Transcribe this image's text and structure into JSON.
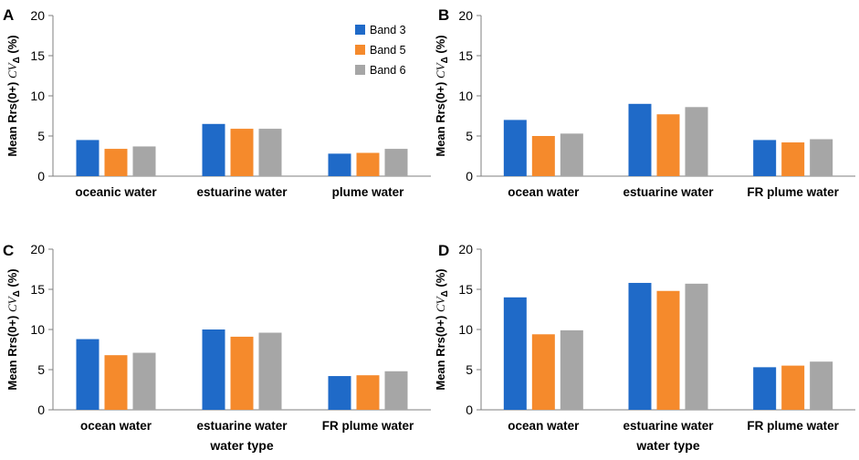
{
  "figure": {
    "x_axis_title": "water type"
  },
  "legend": {
    "show_in_panel": "A",
    "placement": "top-right"
  },
  "chart_data": [
    {
      "panel": "A",
      "type": "bar",
      "ylabel_main": "Mean Rrs(0+) ",
      "ylabel_cv": "CV",
      "ylabel_sub": "Δ",
      "ylabel_unit": " (%)",
      "xlabel": "",
      "ylim": [
        0,
        20
      ],
      "yticks": [
        0,
        5,
        10,
        15,
        20
      ],
      "categories": [
        "oceanic water",
        "estuarine water",
        "plume water"
      ],
      "series": [
        {
          "name": "Band 3",
          "color": "#1f6ac8",
          "values": [
            4.5,
            6.5,
            2.8
          ]
        },
        {
          "name": "Band 5",
          "color": "#f58a2c",
          "values": [
            3.4,
            5.9,
            2.9
          ]
        },
        {
          "name": "Band 6",
          "color": "#a6a6a6",
          "values": [
            3.7,
            5.9,
            3.4
          ]
        }
      ]
    },
    {
      "panel": "B",
      "type": "bar",
      "ylabel_main": "Mean Rrs(0+) ",
      "ylabel_cv": "CV",
      "ylabel_sub": "Δ",
      "ylabel_unit": " (%)",
      "xlabel": "",
      "ylim": [
        0,
        20
      ],
      "yticks": [
        0,
        5,
        10,
        15,
        20
      ],
      "categories": [
        "ocean water",
        "estuarine water",
        "FR plume water"
      ],
      "series": [
        {
          "name": "Band 3",
          "color": "#1f6ac8",
          "values": [
            7.0,
            9.0,
            4.5
          ]
        },
        {
          "name": "Band 5",
          "color": "#f58a2c",
          "values": [
            5.0,
            7.7,
            4.2
          ]
        },
        {
          "name": "Band 6",
          "color": "#a6a6a6",
          "values": [
            5.3,
            8.6,
            4.6
          ]
        }
      ]
    },
    {
      "panel": "C",
      "type": "bar",
      "ylabel_main": "Mean Rrs(0+) ",
      "ylabel_cv": "CV",
      "ylabel_sub": "Δ",
      "ylabel_unit": " (%)",
      "xlabel": "water type",
      "ylim": [
        0,
        20
      ],
      "yticks": [
        0,
        5,
        10,
        15,
        20
      ],
      "categories": [
        "ocean water",
        "estuarine water",
        "FR plume water"
      ],
      "series": [
        {
          "name": "Band 3",
          "color": "#1f6ac8",
          "values": [
            8.8,
            10.0,
            4.2
          ]
        },
        {
          "name": "Band 5",
          "color": "#f58a2c",
          "values": [
            6.8,
            9.1,
            4.3
          ]
        },
        {
          "name": "Band 6",
          "color": "#a6a6a6",
          "values": [
            7.1,
            9.6,
            4.8
          ]
        }
      ]
    },
    {
      "panel": "D",
      "type": "bar",
      "ylabel_main": "Mean Rrs(0+) ",
      "ylabel_cv": "CV",
      "ylabel_sub": "Δ",
      "ylabel_unit": " (%)",
      "xlabel": "water type",
      "ylim": [
        0,
        20
      ],
      "yticks": [
        0,
        5,
        10,
        15,
        20
      ],
      "categories": [
        "ocean water",
        "estuarine water",
        "FR plume water"
      ],
      "series": [
        {
          "name": "Band 3",
          "color": "#1f6ac8",
          "values": [
            14.0,
            15.8,
            5.3
          ]
        },
        {
          "name": "Band 5",
          "color": "#f58a2c",
          "values": [
            9.4,
            14.8,
            5.5
          ]
        },
        {
          "name": "Band 6",
          "color": "#a6a6a6",
          "values": [
            9.9,
            15.7,
            6.0
          ]
        }
      ]
    }
  ]
}
